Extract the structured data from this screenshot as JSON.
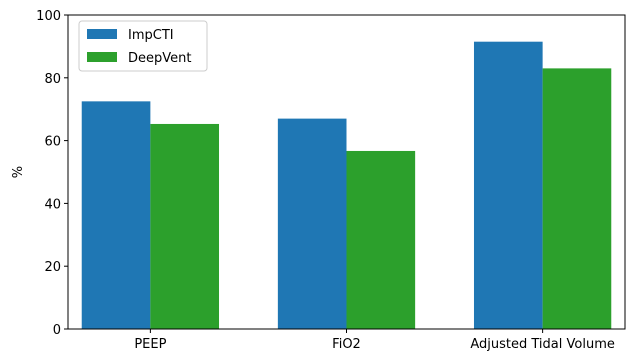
{
  "chart_data": {
    "type": "bar",
    "title": "",
    "xlabel": "",
    "ylabel": "%",
    "categories": [
      "PEEP",
      "FiO2",
      "Adjusted Tidal Volume"
    ],
    "series": [
      {
        "name": "ImpCTI",
        "color": "#1f77b4",
        "values": [
          72.5,
          67.0,
          91.5
        ]
      },
      {
        "name": "DeepVent",
        "color": "#2ca02c",
        "values": [
          65.3,
          56.7,
          83.0
        ]
      }
    ],
    "ylim": [
      0,
      100
    ],
    "yticks": [
      0,
      20,
      40,
      60,
      80,
      100
    ],
    "grid": false,
    "legend_position": "top-left"
  }
}
